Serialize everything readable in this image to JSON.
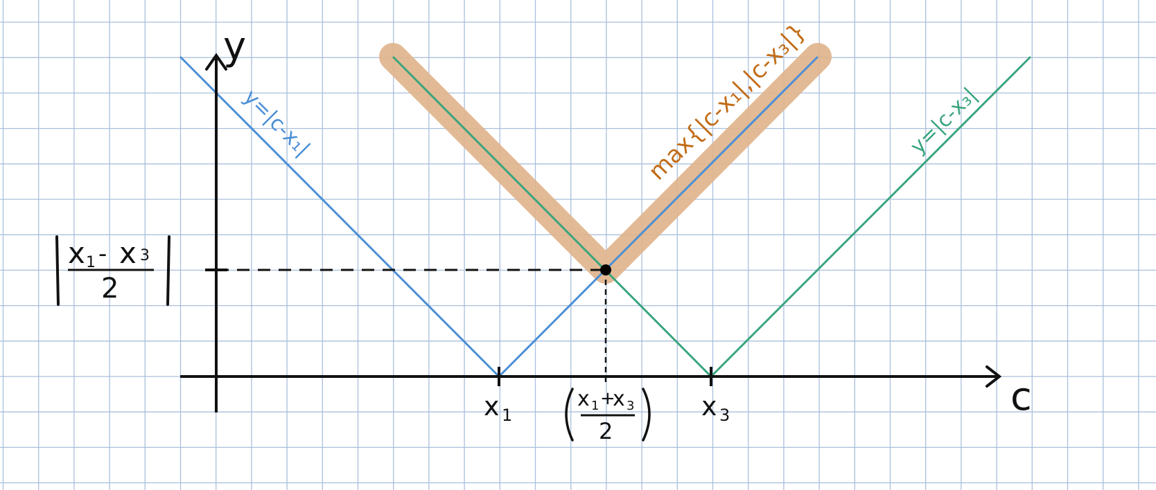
{
  "axes": {
    "x_label": "c",
    "y_label": "y"
  },
  "ticks": {
    "x1": {
      "sym": "x",
      "sub": "1"
    },
    "x3": {
      "sym": "x",
      "sub": "3"
    },
    "midpoint": {
      "num_a": "x",
      "sub_a": "1",
      "op": "+",
      "num_b": "x",
      "sub_b": "3",
      "den": "2"
    }
  },
  "y_value_label": {
    "num_a": "x",
    "sub_a": "1",
    "op": "-",
    "num_b": "x",
    "sub_b": "3",
    "den": "2"
  },
  "curves": {
    "blue": {
      "label": "y=|c-x₁|",
      "color": "#4b8fd6"
    },
    "green": {
      "label": "y=|c-x₃|",
      "color": "#3aa57e"
    },
    "max": {
      "label": "max{|c-x₁|,|c-x₃|}",
      "color": "#dba87a"
    }
  },
  "colors": {
    "grid": "#a9bfdc",
    "axis": "#111111",
    "blue": "#4b8fd6",
    "green": "#3aa57e",
    "highlight": "#dfb48c",
    "orange_text": "#c26c18"
  }
}
